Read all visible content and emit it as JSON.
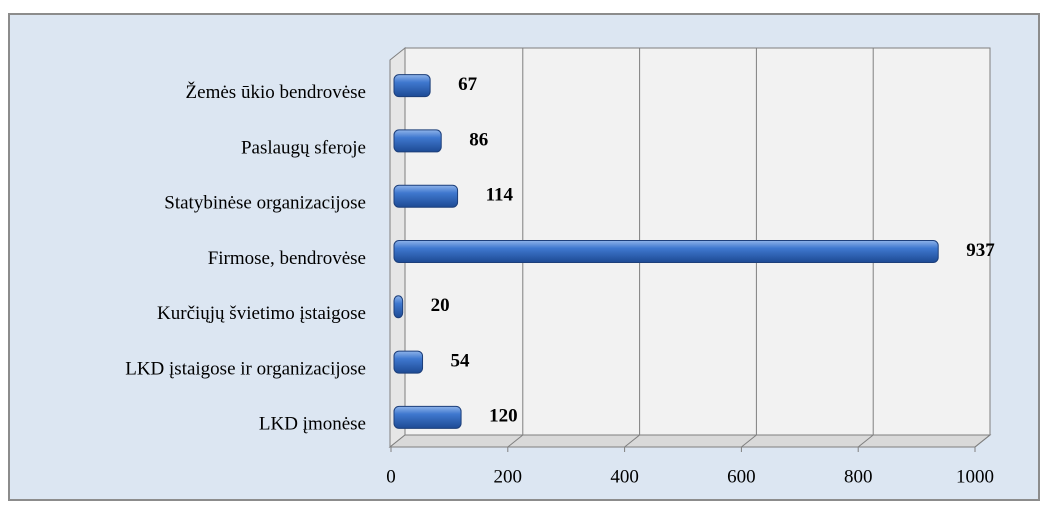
{
  "chart_data": {
    "type": "bar",
    "orientation": "horizontal",
    "categories": [
      "Žemės ūkio bendrovėse",
      "Paslaugų sferoje",
      "Statybinėse organizacijose",
      "Firmose, bendrovėse",
      "Kurčiųjų švietimo įstaigose",
      "LKD įstaigose ir organizacijose",
      "LKD įmonėse"
    ],
    "values": [
      67,
      86,
      114,
      937,
      20,
      54,
      120
    ],
    "color": "#2e64b8",
    "xlim": [
      0,
      1000
    ],
    "xticks": [
      0,
      200,
      400,
      600,
      800,
      1000
    ],
    "grid": true
  }
}
